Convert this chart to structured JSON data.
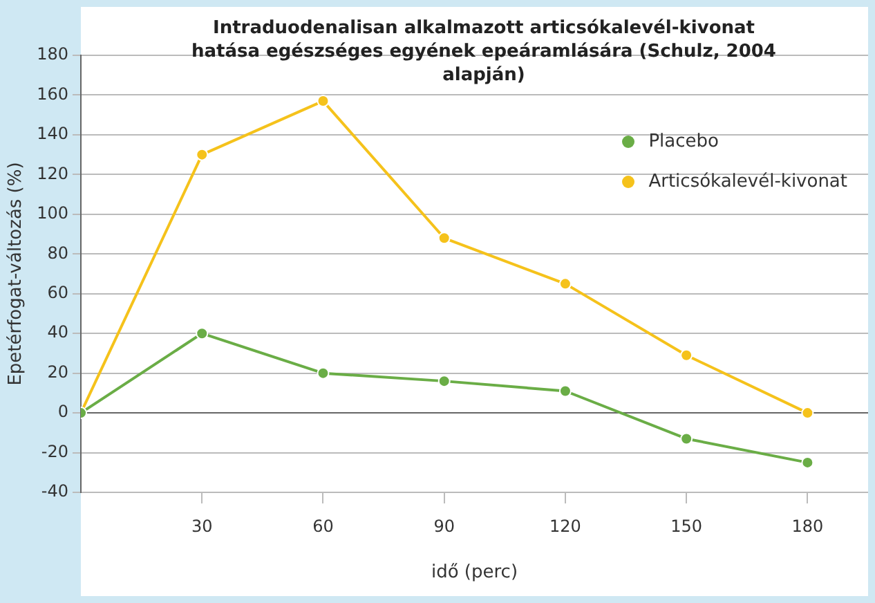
{
  "chart_data": {
    "type": "line",
    "title": "Intraduodenalisan alkalmazott articsókalevél-kivonat hatása egészséges egyének epeáramlására (Schulz, 2004 alapján)",
    "xlabel": "idő (perc)",
    "ylabel": "Epetérfogat-változás (%)",
    "x": [
      0,
      30,
      60,
      90,
      120,
      150,
      180
    ],
    "series": [
      {
        "name": "Placebo",
        "color": "#6aad46",
        "values": [
          0,
          40,
          20,
          16,
          11,
          -13,
          -25
        ]
      },
      {
        "name": "Articsókalevél-kivonat",
        "color": "#f5c21b",
        "values": [
          0,
          130,
          157,
          88,
          65,
          29,
          0
        ]
      }
    ],
    "xlim": [
      0,
      195
    ],
    "xticks": [
      30,
      60,
      90,
      120,
      150,
      180
    ],
    "ylim": [
      -40,
      180
    ],
    "yticks": [
      -40,
      -20,
      0,
      20,
      40,
      60,
      80,
      100,
      120,
      140,
      160,
      180
    ],
    "grid": "y",
    "legend": "top right",
    "marker": "circle",
    "line_style": "solid"
  }
}
